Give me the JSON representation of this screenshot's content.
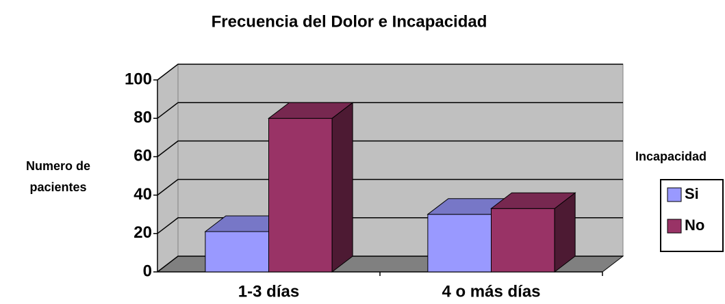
{
  "chart_data": {
    "type": "bar3d",
    "title": "Frecuencia del Dolor e Incapacidad",
    "y_label": [
      "Numero de",
      "pacientes"
    ],
    "categories": [
      "1-3 días",
      "4 o más días"
    ],
    "series": [
      {
        "name": "Si",
        "color": "#9999ff",
        "values": [
          21,
          30
        ]
      },
      {
        "name": "No",
        "color": "#993366",
        "values": [
          80,
          33
        ]
      }
    ],
    "ylim": [
      0,
      100
    ],
    "yticks": [
      0,
      20,
      40,
      60,
      80,
      100
    ],
    "grid": true,
    "legend_title": "Incapacidad",
    "legend": "right"
  }
}
